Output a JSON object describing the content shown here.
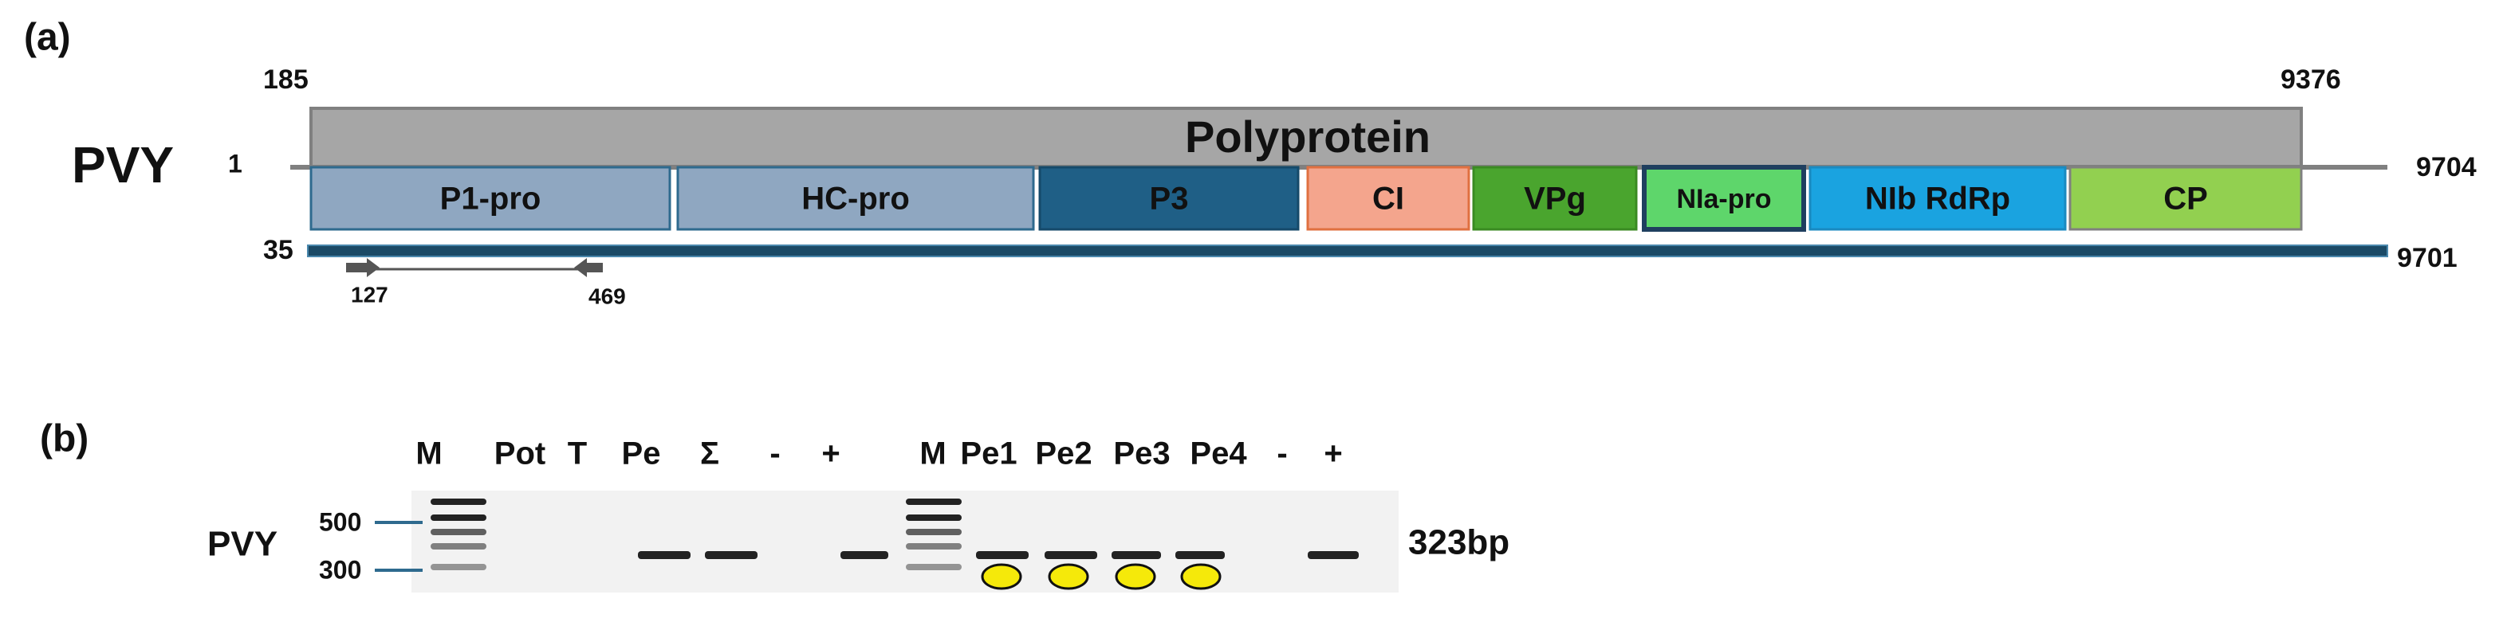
{
  "panel_a": {
    "label": "(a)",
    "virus": "PVY",
    "polyprotein": {
      "label": "Polyprotein",
      "start": 185,
      "end": 9376
    },
    "genome": {
      "start": 1,
      "end": 9704
    },
    "segments": [
      "P1-pro",
      "HC-pro",
      "P3",
      "CI",
      "VPg",
      "NIa-pro",
      "NIb RdRp",
      "CP"
    ],
    "cds": {
      "start": 35,
      "end": 9701
    },
    "primers": {
      "forward": 127,
      "reverse": 469
    }
  },
  "panel_b": {
    "label": "(b)",
    "target": "PVY",
    "lanes": [
      "M",
      "Pot",
      "T",
      "Pe",
      "Σ",
      "-",
      "+",
      "M",
      "Pe1",
      "Pe2",
      "Pe3",
      "Pe4",
      "-",
      "+"
    ],
    "markers": [
      500,
      300
    ],
    "product": "323bp"
  }
}
